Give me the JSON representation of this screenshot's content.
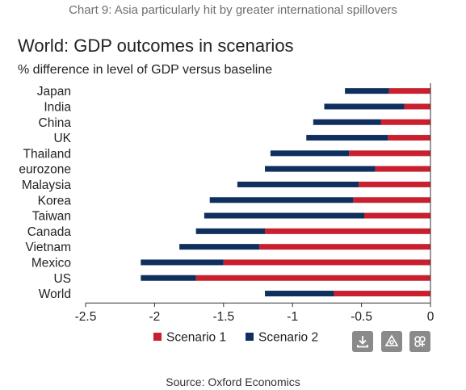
{
  "caption": "Chart 9: Asia particularly hit by greater international spillovers",
  "source": "Source: Oxford Economics",
  "toolbar": {
    "download_icon": "download-icon",
    "share_icon": "share-icon",
    "embed_icon": "embed-icon"
  },
  "chart_data": {
    "type": "bar",
    "orientation": "horizontal",
    "stacked": true,
    "title": "World: GDP outcomes in scenarios",
    "subtitle": "% difference in level of GDP versus baseline",
    "categories": [
      "Japan",
      "India",
      "China",
      "UK",
      "Thailand",
      "eurozone",
      "Malaysia",
      "Korea",
      "Taiwan",
      "Canada",
      "Vietnam",
      "Mexico",
      "US",
      "World"
    ],
    "series": [
      {
        "name": "Scenario 1",
        "color": "#c8202f",
        "values": [
          -0.3,
          -0.19,
          -0.36,
          -0.31,
          -0.59,
          -0.4,
          -0.52,
          -0.56,
          -0.48,
          -1.2,
          -1.24,
          -1.5,
          -1.7,
          -0.7
        ]
      },
      {
        "name": "Scenario 2",
        "color": "#0f2f5e",
        "values": [
          -0.32,
          -0.58,
          -0.49,
          -0.59,
          -0.57,
          -0.8,
          -0.88,
          -1.04,
          -1.16,
          -0.5,
          -0.58,
          -0.6,
          -0.4,
          -0.5
        ]
      }
    ],
    "xlim": [
      -2.5,
      0
    ],
    "xticks": [
      "-2.5",
      "-2",
      "-1.5",
      "-1",
      "-0.5",
      "0"
    ],
    "legend": "bottom"
  }
}
